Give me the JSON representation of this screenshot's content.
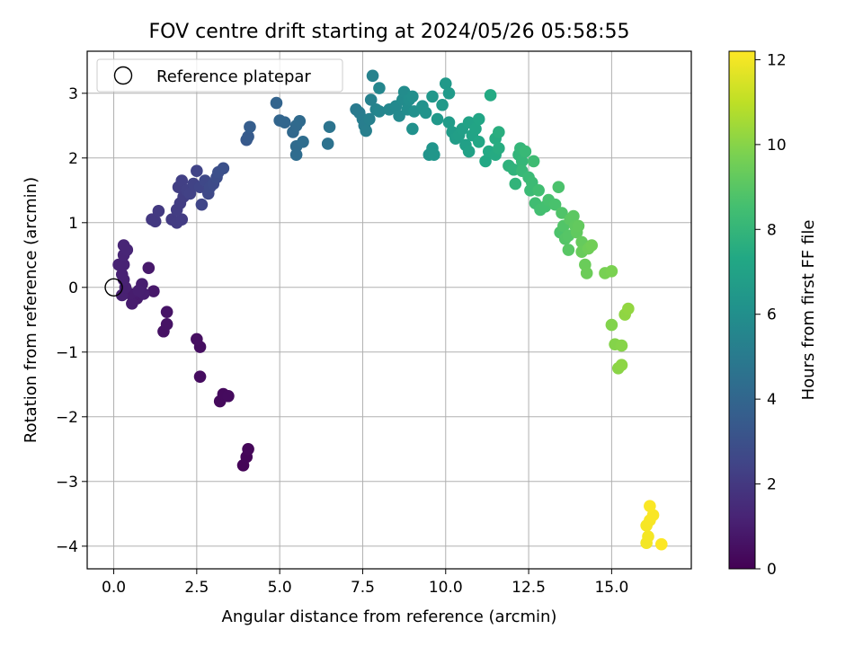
{
  "chart_data": {
    "type": "scatter",
    "title": "FOV centre drift starting at 2024/05/26 05:58:55",
    "xlabel": "Angular distance from reference (arcmin)",
    "ylabel": "Rotation from reference (arcmin)",
    "xlim": [
      -0.8,
      17.4
    ],
    "ylim": [
      -4.35,
      3.65
    ],
    "xticks": [
      0.0,
      2.5,
      5.0,
      7.5,
      10.0,
      12.5,
      15.0
    ],
    "xtick_labels": [
      "0.0",
      "2.5",
      "5.0",
      "7.5",
      "10.0",
      "12.5",
      "15.0"
    ],
    "yticks": [
      -4,
      -3,
      -2,
      -1,
      0,
      1,
      2,
      3
    ],
    "ytick_labels": [
      "−4",
      "−3",
      "−2",
      "−1",
      "0",
      "1",
      "2",
      "3"
    ],
    "grid": true,
    "legend": {
      "position": "top-left",
      "entries": [
        "Reference platepar"
      ]
    },
    "reference_point": {
      "x": 0,
      "y": 0,
      "marker": "hollow-circle"
    },
    "colorbar": {
      "label": "Hours from first FF file",
      "range": [
        0,
        12.2
      ],
      "ticks": [
        0,
        2,
        4,
        6,
        8,
        10,
        12
      ],
      "tick_labels": [
        "0",
        "2",
        "4",
        "6",
        "8",
        "10",
        "12"
      ],
      "colormap": "viridis"
    },
    "points": [
      {
        "x": 3.9,
        "y": -2.75,
        "c": 0.1
      },
      {
        "x": 4.0,
        "y": -2.62,
        "c": 0.15
      },
      {
        "x": 4.05,
        "y": -2.5,
        "c": 0.2
      },
      {
        "x": 3.2,
        "y": -1.76,
        "c": 0.3
      },
      {
        "x": 3.3,
        "y": -1.65,
        "c": 0.33
      },
      {
        "x": 3.45,
        "y": -1.68,
        "c": 0.36
      },
      {
        "x": 2.6,
        "y": -1.38,
        "c": 0.4
      },
      {
        "x": 2.6,
        "y": -0.92,
        "c": 0.45
      },
      {
        "x": 2.5,
        "y": -0.8,
        "c": 0.48
      },
      {
        "x": 1.5,
        "y": -0.68,
        "c": 0.6
      },
      {
        "x": 1.6,
        "y": -0.57,
        "c": 0.62
      },
      {
        "x": 1.6,
        "y": -0.38,
        "c": 0.65
      },
      {
        "x": 1.2,
        "y": -0.06,
        "c": 0.8
      },
      {
        "x": 1.05,
        "y": 0.3,
        "c": 0.85
      },
      {
        "x": 0.7,
        "y": -0.17,
        "c": 0.9
      },
      {
        "x": 0.65,
        "y": -0.1,
        "c": 0.92
      },
      {
        "x": 0.55,
        "y": -0.25,
        "c": 0.95
      },
      {
        "x": 0.5,
        "y": -0.1,
        "c": 0.97
      },
      {
        "x": 0.85,
        "y": 0.05,
        "c": 1.0
      },
      {
        "x": 0.9,
        "y": -0.1,
        "c": 1.02
      },
      {
        "x": 0.75,
        "y": -0.05,
        "c": 1.04
      },
      {
        "x": 0.25,
        "y": -0.12,
        "c": 1.1
      },
      {
        "x": 0.35,
        "y": 0.0,
        "c": 1.12
      },
      {
        "x": 0.3,
        "y": 0.12,
        "c": 1.14
      },
      {
        "x": 0.25,
        "y": 0.2,
        "c": 1.16
      },
      {
        "x": 0.15,
        "y": 0.35,
        "c": 1.18
      },
      {
        "x": 0.3,
        "y": 0.35,
        "c": 1.2
      },
      {
        "x": 0.3,
        "y": 0.5,
        "c": 1.25
      },
      {
        "x": 0.4,
        "y": 0.58,
        "c": 1.28
      },
      {
        "x": 0.3,
        "y": 0.65,
        "c": 1.3
      },
      {
        "x": 1.15,
        "y": 1.05,
        "c": 2.0
      },
      {
        "x": 1.25,
        "y": 1.02,
        "c": 2.02
      },
      {
        "x": 1.35,
        "y": 1.18,
        "c": 2.05
      },
      {
        "x": 1.75,
        "y": 1.05,
        "c": 2.1
      },
      {
        "x": 1.9,
        "y": 1.0,
        "c": 2.12
      },
      {
        "x": 2.05,
        "y": 1.05,
        "c": 2.14
      },
      {
        "x": 1.9,
        "y": 1.2,
        "c": 2.16
      },
      {
        "x": 2.0,
        "y": 1.3,
        "c": 2.18
      },
      {
        "x": 2.1,
        "y": 1.4,
        "c": 2.2
      },
      {
        "x": 1.95,
        "y": 1.55,
        "c": 2.25
      },
      {
        "x": 2.05,
        "y": 1.65,
        "c": 2.3
      },
      {
        "x": 2.2,
        "y": 1.5,
        "c": 2.32
      },
      {
        "x": 2.3,
        "y": 1.45,
        "c": 2.35
      },
      {
        "x": 2.4,
        "y": 1.6,
        "c": 2.4
      },
      {
        "x": 2.5,
        "y": 1.8,
        "c": 2.45
      },
      {
        "x": 2.6,
        "y": 1.55,
        "c": 2.5
      },
      {
        "x": 2.65,
        "y": 1.28,
        "c": 2.55
      },
      {
        "x": 2.75,
        "y": 1.65,
        "c": 2.6
      },
      {
        "x": 2.85,
        "y": 1.45,
        "c": 2.65
      },
      {
        "x": 2.9,
        "y": 1.55,
        "c": 2.7
      },
      {
        "x": 3.0,
        "y": 1.6,
        "c": 2.75
      },
      {
        "x": 3.1,
        "y": 1.7,
        "c": 2.85
      },
      {
        "x": 3.15,
        "y": 1.78,
        "c": 2.95
      },
      {
        "x": 3.3,
        "y": 1.84,
        "c": 3.0
      },
      {
        "x": 4.0,
        "y": 2.28,
        "c": 3.4
      },
      {
        "x": 4.05,
        "y": 2.33,
        "c": 3.5
      },
      {
        "x": 4.1,
        "y": 2.48,
        "c": 3.6
      },
      {
        "x": 4.9,
        "y": 2.85,
        "c": 3.9
      },
      {
        "x": 5.0,
        "y": 2.58,
        "c": 3.95
      },
      {
        "x": 5.15,
        "y": 2.55,
        "c": 4.0
      },
      {
        "x": 5.4,
        "y": 2.4,
        "c": 4.1
      },
      {
        "x": 5.5,
        "y": 2.5,
        "c": 4.15
      },
      {
        "x": 5.6,
        "y": 2.57,
        "c": 4.2
      },
      {
        "x": 5.5,
        "y": 2.18,
        "c": 4.25
      },
      {
        "x": 5.5,
        "y": 2.05,
        "c": 4.3
      },
      {
        "x": 5.7,
        "y": 2.25,
        "c": 4.35
      },
      {
        "x": 6.45,
        "y": 2.22,
        "c": 4.6
      },
      {
        "x": 6.5,
        "y": 2.48,
        "c": 4.7
      },
      {
        "x": 7.3,
        "y": 2.75,
        "c": 5.0
      },
      {
        "x": 7.4,
        "y": 2.7,
        "c": 5.05
      },
      {
        "x": 7.5,
        "y": 2.6,
        "c": 5.1
      },
      {
        "x": 7.55,
        "y": 2.5,
        "c": 5.15
      },
      {
        "x": 7.6,
        "y": 2.42,
        "c": 5.2
      },
      {
        "x": 7.7,
        "y": 2.6,
        "c": 5.25
      },
      {
        "x": 7.75,
        "y": 2.9,
        "c": 5.3
      },
      {
        "x": 7.8,
        "y": 3.27,
        "c": 5.35
      },
      {
        "x": 7.9,
        "y": 2.75,
        "c": 5.4
      },
      {
        "x": 8.0,
        "y": 2.72,
        "c": 5.5
      },
      {
        "x": 8.0,
        "y": 3.08,
        "c": 5.55
      },
      {
        "x": 8.3,
        "y": 2.75,
        "c": 5.6
      },
      {
        "x": 8.5,
        "y": 2.8,
        "c": 5.7
      },
      {
        "x": 8.6,
        "y": 2.65,
        "c": 5.75
      },
      {
        "x": 8.7,
        "y": 2.9,
        "c": 5.8
      },
      {
        "x": 8.75,
        "y": 3.02,
        "c": 5.85
      },
      {
        "x": 8.85,
        "y": 2.75,
        "c": 5.9
      },
      {
        "x": 8.9,
        "y": 2.9,
        "c": 5.95
      },
      {
        "x": 9.0,
        "y": 2.95,
        "c": 6.0
      },
      {
        "x": 9.05,
        "y": 2.72,
        "c": 6.05
      },
      {
        "x": 9.0,
        "y": 2.45,
        "c": 6.1
      },
      {
        "x": 9.3,
        "y": 2.8,
        "c": 6.15
      },
      {
        "x": 9.4,
        "y": 2.7,
        "c": 6.2
      },
      {
        "x": 9.5,
        "y": 2.05,
        "c": 6.25
      },
      {
        "x": 9.6,
        "y": 2.15,
        "c": 6.3
      },
      {
        "x": 9.65,
        "y": 2.05,
        "c": 6.35
      },
      {
        "x": 9.6,
        "y": 2.95,
        "c": 6.4
      },
      {
        "x": 9.75,
        "y": 2.6,
        "c": 6.45
      },
      {
        "x": 9.9,
        "y": 2.82,
        "c": 6.5
      },
      {
        "x": 10.0,
        "y": 3.15,
        "c": 6.55
      },
      {
        "x": 10.1,
        "y": 3.0,
        "c": 6.6
      },
      {
        "x": 10.1,
        "y": 2.55,
        "c": 6.65
      },
      {
        "x": 10.2,
        "y": 2.4,
        "c": 6.7
      },
      {
        "x": 10.3,
        "y": 2.3,
        "c": 6.75
      },
      {
        "x": 10.4,
        "y": 2.35,
        "c": 6.8
      },
      {
        "x": 10.5,
        "y": 2.45,
        "c": 6.85
      },
      {
        "x": 10.6,
        "y": 2.2,
        "c": 6.9
      },
      {
        "x": 10.7,
        "y": 2.1,
        "c": 6.95
      },
      {
        "x": 10.7,
        "y": 2.55,
        "c": 7.0
      },
      {
        "x": 10.8,
        "y": 2.35,
        "c": 7.05
      },
      {
        "x": 10.9,
        "y": 2.45,
        "c": 7.1
      },
      {
        "x": 11.0,
        "y": 2.6,
        "c": 7.15
      },
      {
        "x": 11.0,
        "y": 2.25,
        "c": 7.2
      },
      {
        "x": 11.2,
        "y": 1.95,
        "c": 7.3
      },
      {
        "x": 11.3,
        "y": 2.1,
        "c": 7.35
      },
      {
        "x": 11.35,
        "y": 2.97,
        "c": 7.4
      },
      {
        "x": 11.5,
        "y": 2.05,
        "c": 7.45
      },
      {
        "x": 11.5,
        "y": 2.3,
        "c": 7.5
      },
      {
        "x": 11.6,
        "y": 2.15,
        "c": 7.55
      },
      {
        "x": 11.6,
        "y": 2.4,
        "c": 7.6
      },
      {
        "x": 11.9,
        "y": 1.88,
        "c": 7.8
      },
      {
        "x": 12.05,
        "y": 1.82,
        "c": 7.85
      },
      {
        "x": 12.1,
        "y": 1.6,
        "c": 7.9
      },
      {
        "x": 12.2,
        "y": 2.05,
        "c": 7.95
      },
      {
        "x": 12.25,
        "y": 2.15,
        "c": 8.0
      },
      {
        "x": 12.3,
        "y": 1.95,
        "c": 8.05
      },
      {
        "x": 12.3,
        "y": 1.8,
        "c": 8.1
      },
      {
        "x": 12.4,
        "y": 2.1,
        "c": 8.15
      },
      {
        "x": 12.5,
        "y": 1.7,
        "c": 8.2
      },
      {
        "x": 12.55,
        "y": 1.5,
        "c": 8.25
      },
      {
        "x": 12.6,
        "y": 1.62,
        "c": 8.3
      },
      {
        "x": 12.65,
        "y": 1.95,
        "c": 8.35
      },
      {
        "x": 12.7,
        "y": 1.3,
        "c": 8.4
      },
      {
        "x": 12.8,
        "y": 1.5,
        "c": 8.45
      },
      {
        "x": 12.85,
        "y": 1.2,
        "c": 8.5
      },
      {
        "x": 13.0,
        "y": 1.25,
        "c": 8.55
      },
      {
        "x": 13.1,
        "y": 1.35,
        "c": 8.6
      },
      {
        "x": 13.3,
        "y": 1.28,
        "c": 8.65
      },
      {
        "x": 13.4,
        "y": 1.55,
        "c": 8.7
      },
      {
        "x": 13.45,
        "y": 0.85,
        "c": 8.75
      },
      {
        "x": 13.5,
        "y": 1.15,
        "c": 8.8
      },
      {
        "x": 13.55,
        "y": 0.95,
        "c": 8.85
      },
      {
        "x": 13.6,
        "y": 0.75,
        "c": 8.9
      },
      {
        "x": 13.7,
        "y": 0.8,
        "c": 8.95
      },
      {
        "x": 13.7,
        "y": 0.58,
        "c": 9.0
      },
      {
        "x": 13.75,
        "y": 1.05,
        "c": 9.05
      },
      {
        "x": 13.85,
        "y": 1.1,
        "c": 9.1
      },
      {
        "x": 13.9,
        "y": 0.95,
        "c": 9.15
      },
      {
        "x": 13.95,
        "y": 0.85,
        "c": 9.2
      },
      {
        "x": 14.0,
        "y": 0.95,
        "c": 9.25
      },
      {
        "x": 14.1,
        "y": 0.7,
        "c": 9.3
      },
      {
        "x": 14.1,
        "y": 0.55,
        "c": 9.35
      },
      {
        "x": 14.2,
        "y": 0.35,
        "c": 9.4
      },
      {
        "x": 14.25,
        "y": 0.22,
        "c": 9.45
      },
      {
        "x": 14.3,
        "y": 0.6,
        "c": 9.5
      },
      {
        "x": 14.4,
        "y": 0.65,
        "c": 9.55
      },
      {
        "x": 14.8,
        "y": 0.22,
        "c": 9.7
      },
      {
        "x": 15.0,
        "y": 0.25,
        "c": 9.75
      },
      {
        "x": 15.0,
        "y": -0.58,
        "c": 9.9
      },
      {
        "x": 15.1,
        "y": -0.88,
        "c": 9.95
      },
      {
        "x": 15.3,
        "y": -0.9,
        "c": 10.0
      },
      {
        "x": 15.2,
        "y": -1.25,
        "c": 10.05
      },
      {
        "x": 15.3,
        "y": -1.2,
        "c": 10.1
      },
      {
        "x": 15.4,
        "y": -0.42,
        "c": 10.15
      },
      {
        "x": 15.5,
        "y": -0.33,
        "c": 10.2
      },
      {
        "x": 16.05,
        "y": -3.95,
        "c": 12.0
      },
      {
        "x": 16.1,
        "y": -3.85,
        "c": 12.03
      },
      {
        "x": 16.05,
        "y": -3.68,
        "c": 12.06
      },
      {
        "x": 16.15,
        "y": -3.6,
        "c": 12.09
      },
      {
        "x": 16.25,
        "y": -3.52,
        "c": 12.12
      },
      {
        "x": 16.15,
        "y": -3.38,
        "c": 12.15
      },
      {
        "x": 16.5,
        "y": -3.97,
        "c": 12.18
      }
    ]
  }
}
